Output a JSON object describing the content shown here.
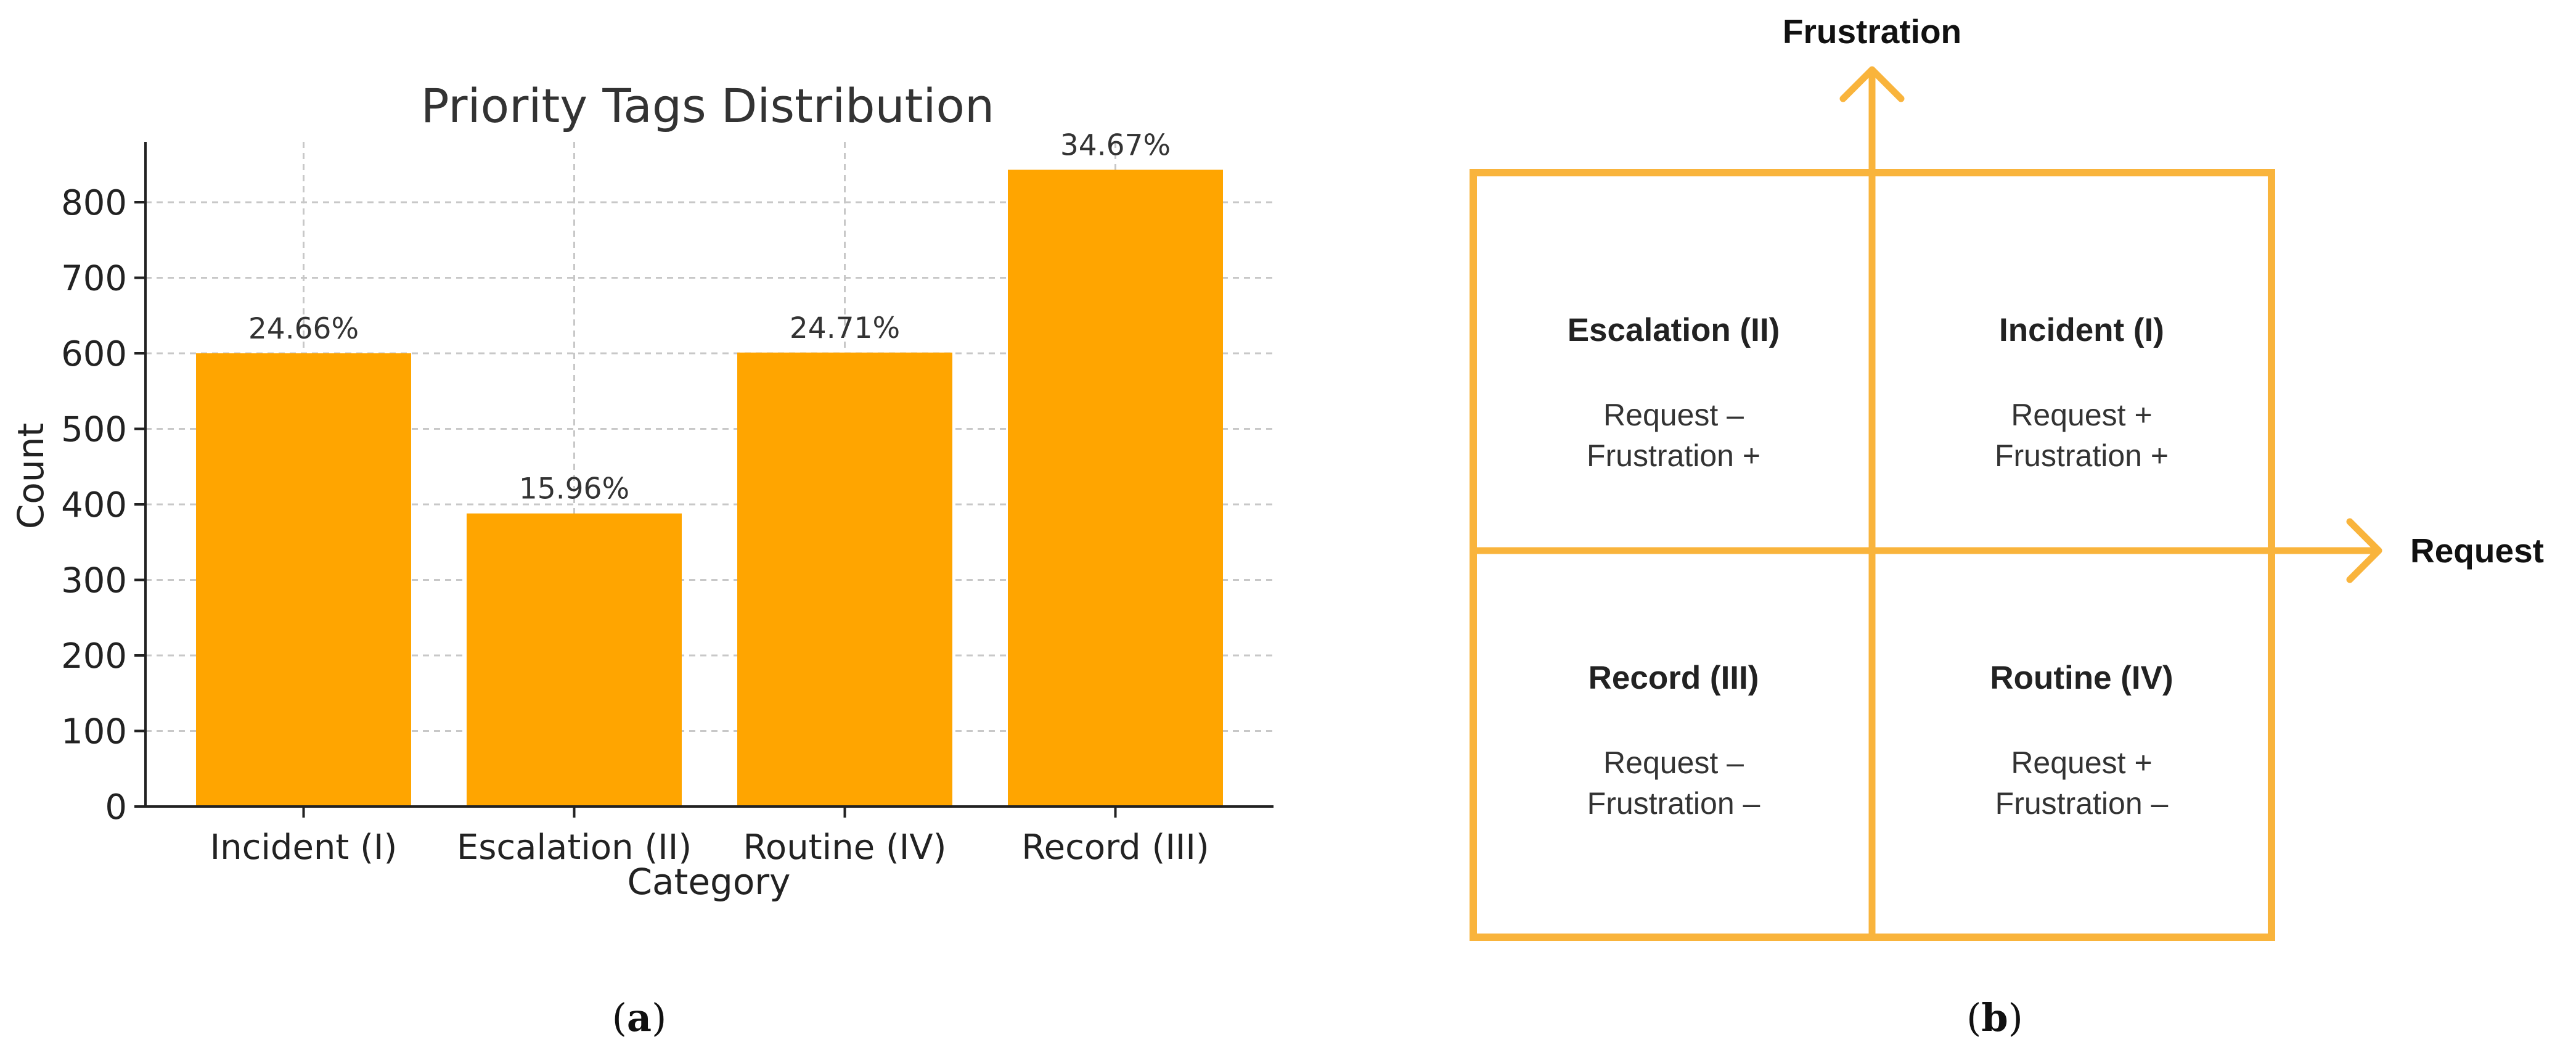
{
  "chart_data": {
    "type": "bar",
    "title": "Priority Tags Distribution",
    "xlabel": "Category",
    "ylabel": "Count",
    "categories": [
      "Incident (I)",
      "Escalation (II)",
      "Routine (IV)",
      "Record (III)"
    ],
    "values": [
      600,
      388,
      601,
      843
    ],
    "data_labels": [
      "24.66%",
      "15.96%",
      "24.71%",
      "34.67%"
    ],
    "ylim": [
      0,
      880
    ],
    "yticks": [
      0,
      100,
      200,
      300,
      400,
      500,
      600,
      700,
      800
    ],
    "grid": true,
    "bar_color": "#FFA500"
  },
  "quadrant": {
    "x_axis_label": "Request",
    "y_axis_label": "Frustration",
    "accent_color": "#F9B43C",
    "cells": [
      {
        "title": "Escalation (II)",
        "line1": "Request –",
        "line2": "Frustration +"
      },
      {
        "title": "Incident (I)",
        "line1": "Request +",
        "line2": "Frustration +"
      },
      {
        "title": "Record (III)",
        "line1": "Request –",
        "line2": "Frustration –"
      },
      {
        "title": "Routine (IV)",
        "line1": "Request +",
        "line2": "Frustration –"
      }
    ]
  },
  "captions": {
    "left": {
      "open": "(",
      "letter": "a",
      "close": ")"
    },
    "right": {
      "open": "(",
      "letter": "b",
      "close": ")"
    }
  }
}
